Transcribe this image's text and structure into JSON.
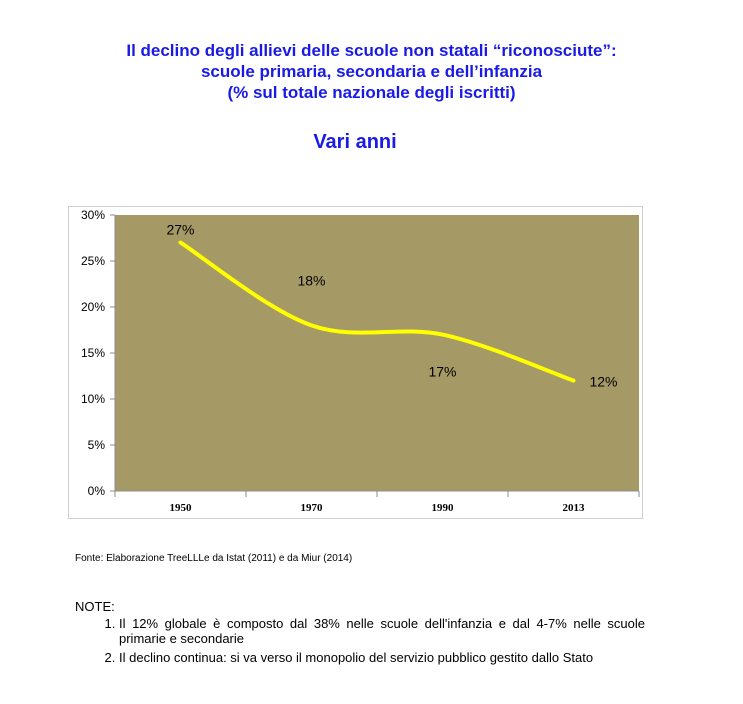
{
  "header": {
    "title_line1": "Il declino degli allievi delle scuole non statali “riconosciute”:",
    "title_line2": "scuole primaria, secondaria e dell’infanzia",
    "title_line3": "(% sul totale nazionale degli iscritti)",
    "subtitle": "Vari anni"
  },
  "colors": {
    "title": "#1a1ae6",
    "plot_background": "#a59a66",
    "line": "#ffff00"
  },
  "chart_data": {
    "type": "line",
    "title": "",
    "xlabel": "",
    "ylabel": "",
    "categories": [
      "1950",
      "1970",
      "1990",
      "2013"
    ],
    "series": [
      {
        "values": [
          27,
          18,
          17,
          12
        ],
        "data_labels": [
          "27%",
          "18%",
          "17%",
          "12%"
        ]
      }
    ],
    "ylim": [
      0,
      30
    ],
    "yticks": [
      "0%",
      "5%",
      "10%",
      "15%",
      "20%",
      "25%",
      "30%"
    ],
    "ytick_values": [
      0,
      5,
      10,
      15,
      20,
      25,
      30
    ],
    "grid": false,
    "legend": "none",
    "smooth": true
  },
  "source": "Fonte: Elaborazione TreeLLLe da Istat (2011) e da Miur (2014)",
  "notes": {
    "title": "NOTE:",
    "items": [
      "Il 12% globale è composto dal 38% nelle scuole dell'infanzia e dal 4-7% nelle scuole primarie e secondarie",
      "Il declino continua: si va verso il monopolio del servizio pubblico gestito dallo Stato"
    ]
  }
}
